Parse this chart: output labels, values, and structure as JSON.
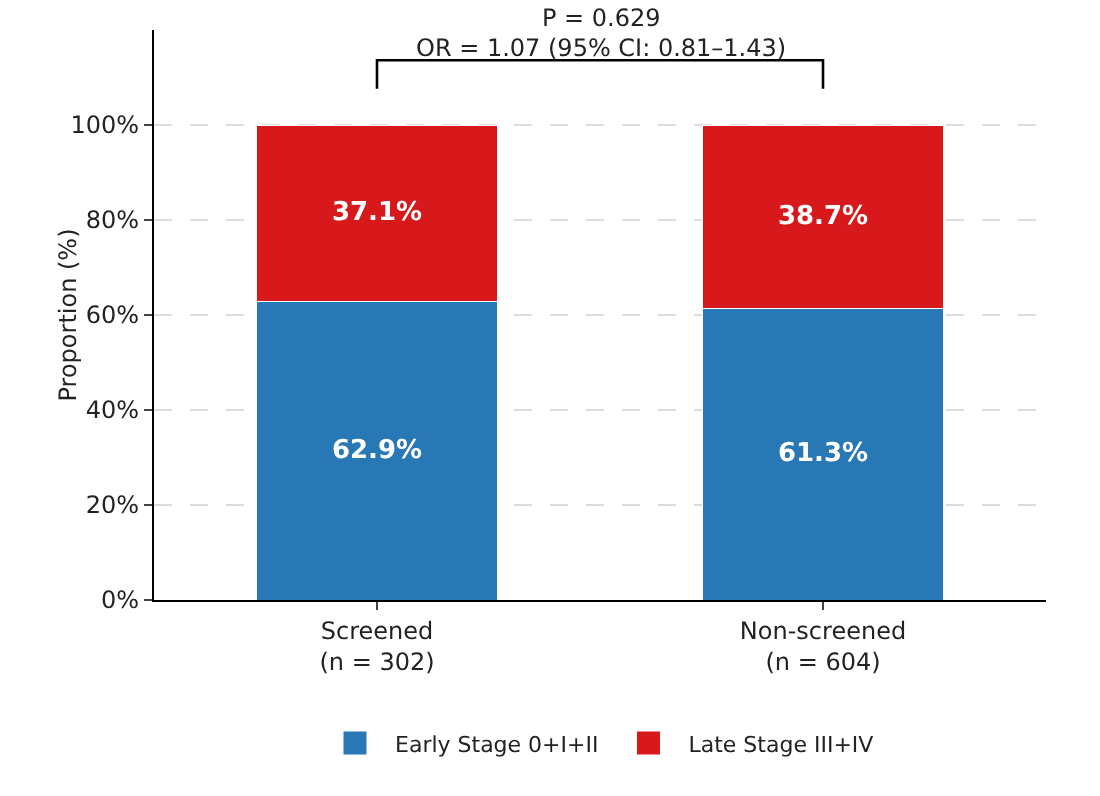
{
  "chart_data": {
    "type": "bar",
    "stacked": true,
    "ylabel": "Proportion (%)",
    "categories": [
      "Screened\n(n = 302)",
      "Non-screened\n(n = 604)"
    ],
    "series": [
      {
        "name": "Early Stage 0+I+II",
        "color": "#2878b5",
        "values": [
          62.9,
          61.3
        ],
        "value_labels": [
          "62.9%",
          "61.3%"
        ]
      },
      {
        "name": "Late Stage III+IV",
        "color": "#d7191c",
        "values": [
          37.1,
          38.7
        ],
        "value_labels": [
          "37.1%",
          "38.7%"
        ]
      }
    ],
    "ylim": [
      0,
      120
    ],
    "yticks": [
      {
        "value": 0,
        "label": "0%"
      },
      {
        "value": 20,
        "label": "20%"
      },
      {
        "value": 40,
        "label": "40%"
      },
      {
        "value": 60,
        "label": "60%"
      },
      {
        "value": 80,
        "label": "80%"
      },
      {
        "value": 100,
        "label": "100%"
      }
    ],
    "grid": "y",
    "legend": "bottom",
    "annotations": [
      "P = 0.629",
      "OR = 1.07 (95% CI: 0.81–1.43)"
    ]
  }
}
